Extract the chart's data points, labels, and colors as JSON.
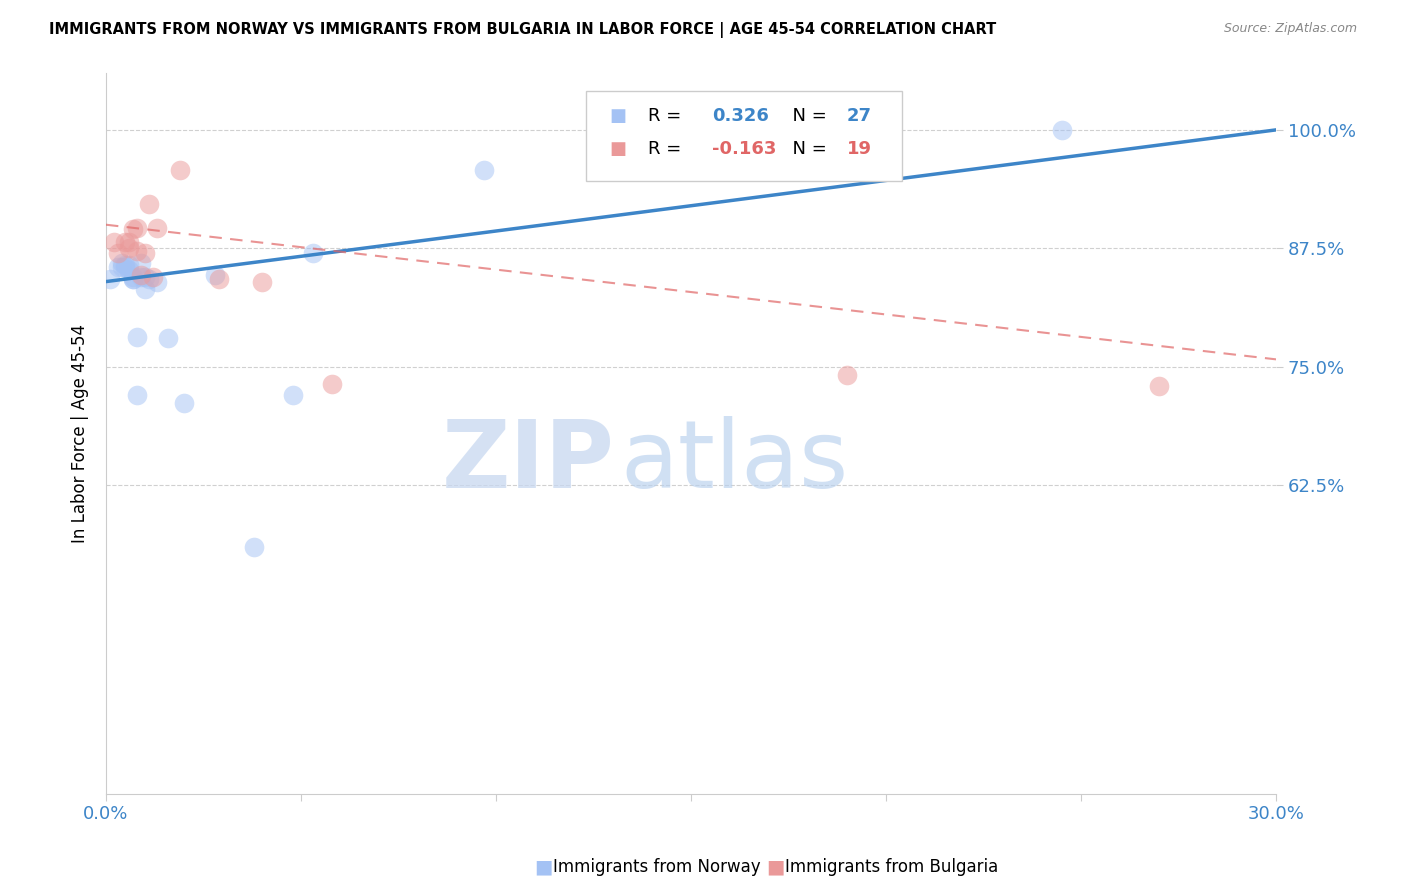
{
  "title": "IMMIGRANTS FROM NORWAY VS IMMIGRANTS FROM BULGARIA IN LABOR FORCE | AGE 45-54 CORRELATION CHART",
  "source": "Source: ZipAtlas.com",
  "ylabel": "In Labor Force | Age 45-54",
  "xlim": [
    0.0,
    0.3
  ],
  "ylim": [
    0.3,
    1.06
  ],
  "norway_r": 0.326,
  "norway_n": 27,
  "bulgaria_r": -0.163,
  "bulgaria_n": 19,
  "norway_color": "#a4c2f4",
  "bulgaria_color": "#ea9999",
  "norway_line_color": "#3d85c8",
  "bulgaria_line_color": "#e06666",
  "watermark_zip": "ZIP",
  "watermark_atlas": "atlas",
  "norway_x": [
    0.001,
    0.003,
    0.004,
    0.004,
    0.005,
    0.005,
    0.006,
    0.006,
    0.007,
    0.007,
    0.007,
    0.008,
    0.008,
    0.009,
    0.009,
    0.01,
    0.01,
    0.011,
    0.013,
    0.016,
    0.02,
    0.028,
    0.038,
    0.048,
    0.053,
    0.097,
    0.245
  ],
  "norway_y": [
    0.843,
    0.855,
    0.86,
    0.855,
    0.858,
    0.855,
    0.857,
    0.852,
    0.845,
    0.843,
    0.843,
    0.72,
    0.782,
    0.86,
    0.845,
    0.845,
    0.832,
    0.843,
    0.84,
    0.78,
    0.712,
    0.847,
    0.56,
    0.72,
    0.87,
    0.958,
    1.0
  ],
  "bulgaria_x": [
    0.002,
    0.003,
    0.005,
    0.006,
    0.006,
    0.007,
    0.008,
    0.008,
    0.009,
    0.01,
    0.011,
    0.012,
    0.013,
    0.019,
    0.029,
    0.04,
    0.058,
    0.19,
    0.27
  ],
  "bulgaria_y": [
    0.882,
    0.87,
    0.882,
    0.875,
    0.882,
    0.895,
    0.897,
    0.872,
    0.847,
    0.87,
    0.922,
    0.845,
    0.897,
    0.958,
    0.843,
    0.84,
    0.732,
    0.742,
    0.73
  ],
  "grid_color": "#d0d0d0",
  "grid_yticks": [
    0.625,
    0.75,
    0.875,
    1.0
  ],
  "norway_trend": [
    0.0,
    0.3,
    0.84,
    1.0
  ],
  "bulgaria_trend": [
    0.0,
    0.3,
    0.9,
    0.758
  ],
  "xtick_positions": [
    0.0,
    0.05,
    0.1,
    0.15,
    0.2,
    0.25,
    0.3
  ],
  "ytick_vals": [
    0.625,
    0.75,
    0.875,
    1.0
  ],
  "ytick_labels": [
    "62.5%",
    "75.0%",
    "87.5%",
    "100.0%"
  ],
  "bottom_legend_norway": "Immigrants from Norway",
  "bottom_legend_bulgaria": "Immigrants from Bulgaria"
}
